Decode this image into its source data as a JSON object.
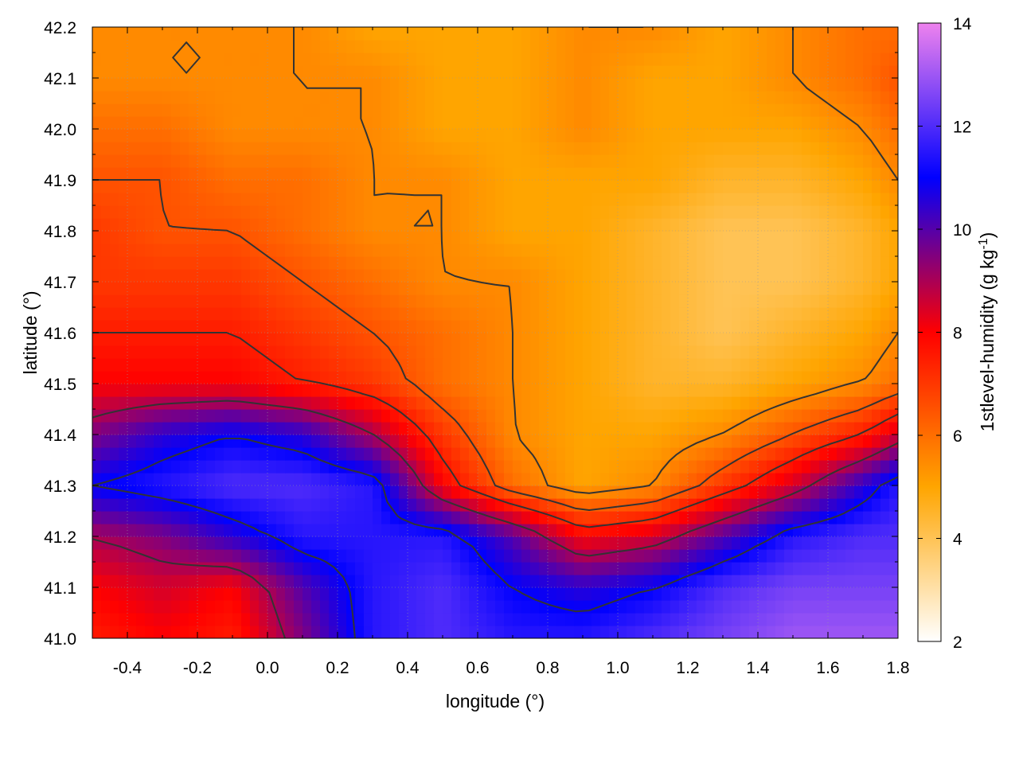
{
  "chart_data": {
    "type": "heatmap",
    "title": "",
    "xlabel": "longitude (°)",
    "ylabel": "latitude (°)",
    "colorbar_label": {
      "base": "1stlevel-humidity (g kg",
      "exponent": "-1",
      "close": ")"
    },
    "xlim": [
      -0.5,
      1.8
    ],
    "ylim": [
      41.0,
      42.2
    ],
    "zlim": [
      2,
      14
    ],
    "x_ticks": [
      -0.4,
      -0.2,
      0.0,
      0.2,
      0.4,
      0.6,
      0.8,
      1.0,
      1.2,
      1.4,
      1.6,
      1.8
    ],
    "x_tick_labels": [
      "-0.4",
      "-0.2",
      "0.0",
      "0.2",
      "0.4",
      "0.6",
      "0.8",
      "1.0",
      "1.2",
      "1.4",
      "1.6",
      "1.8"
    ],
    "y_ticks": [
      41.0,
      41.1,
      41.2,
      41.3,
      41.4,
      41.5,
      41.6,
      41.7,
      41.8,
      41.9,
      42.0,
      42.1,
      42.2
    ],
    "y_tick_labels": [
      "41.0",
      "41.1",
      "41.2",
      "41.3",
      "41.4",
      "41.5",
      "41.6",
      "41.7",
      "41.8",
      "41.9",
      "42.0",
      "42.1",
      "42.2"
    ],
    "z_ticks": [
      2,
      4,
      6,
      8,
      10,
      12,
      14
    ],
    "z_tick_labels": [
      "2",
      "4",
      "6",
      "8",
      "10",
      "12",
      "14"
    ],
    "grid": true,
    "colormap": [
      "#ffffff",
      "#ffa500",
      "#ff0000",
      "#0000ff",
      "#ee82ee"
    ],
    "contour_color": "#333333",
    "field_grid": {
      "x": [
        -0.5,
        -0.3,
        -0.1,
        0.1,
        0.3,
        0.5,
        0.7,
        0.9,
        1.1,
        1.3,
        1.5,
        1.7,
        1.8
      ],
      "y": [
        41.0,
        41.1,
        41.2,
        41.3,
        41.4,
        41.5,
        41.6,
        41.7,
        41.8,
        41.9,
        42.0,
        42.1,
        42.2
      ],
      "z": [
        [
          7.5,
          8.0,
          7.5,
          9.5,
          11.5,
          12.0,
          11.5,
          11.5,
          12.0,
          12.5,
          13.0,
          13.0,
          13.0
        ],
        [
          8.0,
          8.5,
          8.0,
          10.0,
          11.5,
          12.0,
          11.0,
          10.5,
          11.0,
          12.0,
          12.5,
          12.5,
          12.5
        ],
        [
          9.0,
          9.5,
          10.5,
          11.5,
          11.5,
          11.5,
          10.0,
          8.0,
          8.5,
          10.0,
          11.5,
          12.0,
          12.0
        ],
        [
          11.0,
          11.5,
          12.0,
          12.0,
          11.5,
          8.0,
          6.0,
          5.0,
          5.5,
          7.0,
          8.5,
          10.5,
          11.5
        ],
        [
          9.5,
          10.5,
          11.0,
          10.5,
          9.0,
          7.0,
          5.5,
          5.0,
          5.0,
          5.5,
          6.5,
          7.5,
          8.5
        ],
        [
          8.0,
          8.0,
          8.0,
          7.5,
          7.0,
          6.0,
          5.5,
          5.0,
          4.5,
          4.5,
          5.0,
          5.5,
          6.0
        ],
        [
          7.5,
          7.5,
          7.5,
          7.0,
          6.5,
          6.0,
          5.5,
          5.0,
          4.5,
          4.0,
          4.5,
          5.0,
          5.5
        ],
        [
          7.0,
          7.0,
          7.0,
          6.5,
          6.0,
          5.5,
          5.5,
          5.0,
          4.5,
          4.0,
          4.0,
          4.5,
          5.0
        ],
        [
          7.0,
          6.5,
          6.5,
          6.0,
          5.5,
          5.5,
          5.0,
          5.0,
          4.5,
          4.0,
          4.0,
          4.5,
          5.0
        ],
        [
          6.5,
          6.5,
          6.0,
          6.0,
          5.5,
          5.5,
          5.0,
          5.0,
          5.0,
          4.5,
          4.5,
          5.0,
          5.5
        ],
        [
          6.0,
          6.0,
          5.5,
          5.5,
          5.5,
          5.0,
          5.0,
          5.5,
          5.0,
          5.0,
          5.0,
          5.5,
          6.0
        ],
        [
          5.5,
          5.5,
          5.5,
          5.5,
          5.5,
          5.0,
          5.0,
          5.5,
          5.0,
          5.0,
          5.5,
          6.0,
          6.5
        ],
        [
          5.5,
          5.5,
          5.5,
          5.5,
          5.0,
          5.0,
          5.0,
          5.5,
          5.5,
          5.0,
          5.5,
          6.0,
          6.0
        ]
      ]
    },
    "contour_levels": [
      5.5,
      6.5,
      7.5,
      9.0,
      11.0
    ]
  }
}
